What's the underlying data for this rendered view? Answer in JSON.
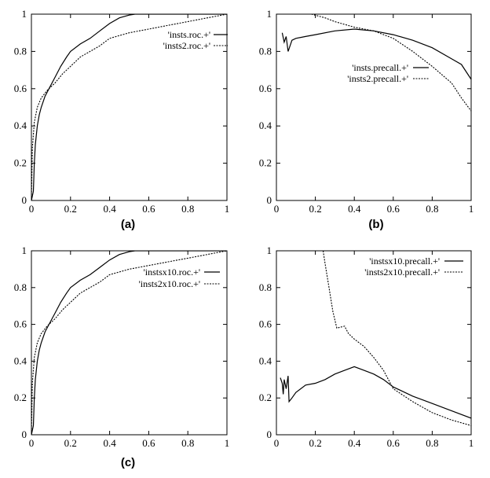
{
  "figure": {
    "captions": [
      "(a)",
      "(b)",
      "(c)"
    ]
  },
  "chart_data": [
    {
      "type": "line",
      "title": "",
      "caption": "(a)",
      "xlim": [
        0,
        1
      ],
      "ylim": [
        0,
        1
      ],
      "xticks": [
        "0",
        "0.2",
        "0.4",
        "0.6",
        "0.8",
        "1"
      ],
      "yticks": [
        "0",
        "0.2",
        "0.4",
        "0.6",
        "0.8",
        "1"
      ],
      "legend_position": "top-right",
      "series": [
        {
          "name": "'insts.roc.+'",
          "style": "solid",
          "points": [
            [
              0,
              0
            ],
            [
              0.01,
              0.05
            ],
            [
              0.015,
              0.2
            ],
            [
              0.02,
              0.3
            ],
            [
              0.03,
              0.4
            ],
            [
              0.04,
              0.46
            ],
            [
              0.05,
              0.5
            ],
            [
              0.07,
              0.56
            ],
            [
              0.09,
              0.6
            ],
            [
              0.12,
              0.66
            ],
            [
              0.15,
              0.72
            ],
            [
              0.18,
              0.77
            ],
            [
              0.2,
              0.8
            ],
            [
              0.25,
              0.84
            ],
            [
              0.3,
              0.87
            ],
            [
              0.35,
              0.91
            ],
            [
              0.4,
              0.95
            ],
            [
              0.45,
              0.98
            ],
            [
              0.5,
              0.995
            ],
            [
              0.53,
              1
            ],
            [
              1,
              1
            ]
          ]
        },
        {
          "name": "'insts2.roc.+'",
          "style": "dashed",
          "points": [
            [
              0,
              0
            ],
            [
              0.005,
              0.28
            ],
            [
              0.015,
              0.42
            ],
            [
              0.03,
              0.5
            ],
            [
              0.05,
              0.55
            ],
            [
              0.08,
              0.59
            ],
            [
              0.12,
              0.63
            ],
            [
              0.16,
              0.68
            ],
            [
              0.2,
              0.72
            ],
            [
              0.25,
              0.77
            ],
            [
              0.3,
              0.8
            ],
            [
              0.35,
              0.83
            ],
            [
              0.4,
              0.87
            ],
            [
              0.5,
              0.9
            ],
            [
              0.6,
              0.92
            ],
            [
              0.7,
              0.94
            ],
            [
              0.8,
              0.96
            ],
            [
              0.9,
              0.98
            ],
            [
              0.95,
              0.99
            ],
            [
              1,
              1
            ]
          ]
        }
      ]
    },
    {
      "type": "line",
      "title": "",
      "caption": "(b)",
      "xlim": [
        0,
        1
      ],
      "ylim": [
        0,
        1
      ],
      "xticks": [
        "0",
        "0.2",
        "0.4",
        "0.6",
        "0.8",
        "1"
      ],
      "yticks": [
        "0",
        "0.2",
        "0.4",
        "0.6",
        "0.8",
        "1"
      ],
      "legend_position": "center-right",
      "series": [
        {
          "name": "'insts.precall.+'",
          "style": "solid",
          "points": [
            [
              0.03,
              0.9
            ],
            [
              0.04,
              0.85
            ],
            [
              0.05,
              0.88
            ],
            [
              0.06,
              0.8
            ],
            [
              0.08,
              0.86
            ],
            [
              0.1,
              0.87
            ],
            [
              0.15,
              0.88
            ],
            [
              0.2,
              0.89
            ],
            [
              0.3,
              0.91
            ],
            [
              0.4,
              0.92
            ],
            [
              0.5,
              0.91
            ],
            [
              0.6,
              0.89
            ],
            [
              0.7,
              0.86
            ],
            [
              0.8,
              0.82
            ],
            [
              0.9,
              0.76
            ],
            [
              0.95,
              0.73
            ],
            [
              1,
              0.65
            ]
          ]
        },
        {
          "name": "'insts2.precall.+'",
          "style": "dashed",
          "points": [
            [
              0.18,
              1
            ],
            [
              0.25,
              0.98
            ],
            [
              0.3,
              0.96
            ],
            [
              0.4,
              0.93
            ],
            [
              0.5,
              0.91
            ],
            [
              0.6,
              0.87
            ],
            [
              0.7,
              0.8
            ],
            [
              0.8,
              0.72
            ],
            [
              0.9,
              0.63
            ],
            [
              0.95,
              0.55
            ],
            [
              1,
              0.48
            ]
          ]
        }
      ]
    },
    {
      "type": "line",
      "title": "",
      "caption": "(c)",
      "xlim": [
        0,
        1
      ],
      "ylim": [
        0,
        1
      ],
      "xticks": [
        "0",
        "0.2",
        "0.4",
        "0.6",
        "0.8",
        "1"
      ],
      "yticks": [
        "0",
        "0.2",
        "0.4",
        "0.6",
        "0.8",
        "1"
      ],
      "legend_position": "top-right",
      "series": [
        {
          "name": "'instsx10.roc.+'",
          "style": "solid",
          "points": [
            [
              0,
              0
            ],
            [
              0.01,
              0.05
            ],
            [
              0.015,
              0.2
            ],
            [
              0.02,
              0.3
            ],
            [
              0.03,
              0.4
            ],
            [
              0.04,
              0.46
            ],
            [
              0.05,
              0.5
            ],
            [
              0.07,
              0.56
            ],
            [
              0.09,
              0.6
            ],
            [
              0.12,
              0.66
            ],
            [
              0.15,
              0.72
            ],
            [
              0.18,
              0.77
            ],
            [
              0.2,
              0.8
            ],
            [
              0.25,
              0.84
            ],
            [
              0.3,
              0.87
            ],
            [
              0.35,
              0.91
            ],
            [
              0.4,
              0.95
            ],
            [
              0.45,
              0.98
            ],
            [
              0.5,
              0.995
            ],
            [
              0.53,
              1
            ],
            [
              1,
              1
            ]
          ]
        },
        {
          "name": "'insts2x10.roc.+'",
          "style": "dashed",
          "points": [
            [
              0,
              0
            ],
            [
              0.005,
              0.28
            ],
            [
              0.015,
              0.42
            ],
            [
              0.03,
              0.5
            ],
            [
              0.05,
              0.55
            ],
            [
              0.08,
              0.59
            ],
            [
              0.12,
              0.63
            ],
            [
              0.16,
              0.68
            ],
            [
              0.2,
              0.72
            ],
            [
              0.25,
              0.77
            ],
            [
              0.3,
              0.8
            ],
            [
              0.35,
              0.83
            ],
            [
              0.4,
              0.87
            ],
            [
              0.5,
              0.9
            ],
            [
              0.6,
              0.92
            ],
            [
              0.7,
              0.94
            ],
            [
              0.8,
              0.96
            ],
            [
              0.9,
              0.98
            ],
            [
              0.95,
              0.99
            ],
            [
              1,
              1
            ]
          ]
        }
      ]
    },
    {
      "type": "line",
      "title": "",
      "caption": "",
      "xlim": [
        0,
        1
      ],
      "ylim": [
        0,
        1
      ],
      "xticks": [
        "0",
        "0.2",
        "0.4",
        "0.6",
        "0.8",
        "1"
      ],
      "yticks": [
        "0",
        "0.2",
        "0.4",
        "0.6",
        "0.8",
        "1"
      ],
      "legend_position": "top-right",
      "series": [
        {
          "name": "'instsx10.precall.+'",
          "style": "solid",
          "points": [
            [
              0.02,
              0.31
            ],
            [
              0.03,
              0.28
            ],
            [
              0.035,
              0.22
            ],
            [
              0.04,
              0.3
            ],
            [
              0.05,
              0.25
            ],
            [
              0.06,
              0.32
            ],
            [
              0.065,
              0.18
            ],
            [
              0.08,
              0.2
            ],
            [
              0.1,
              0.23
            ],
            [
              0.15,
              0.27
            ],
            [
              0.2,
              0.28
            ],
            [
              0.25,
              0.3
            ],
            [
              0.3,
              0.33
            ],
            [
              0.35,
              0.35
            ],
            [
              0.4,
              0.37
            ],
            [
              0.45,
              0.35
            ],
            [
              0.5,
              0.33
            ],
            [
              0.55,
              0.3
            ],
            [
              0.6,
              0.26
            ],
            [
              0.7,
              0.21
            ],
            [
              0.8,
              0.17
            ],
            [
              0.9,
              0.13
            ],
            [
              1,
              0.09
            ]
          ]
        },
        {
          "name": "'insts2x10.precall.+'",
          "style": "dashed",
          "points": [
            [
              0.24,
              1
            ],
            [
              0.25,
              0.93
            ],
            [
              0.27,
              0.8
            ],
            [
              0.29,
              0.67
            ],
            [
              0.31,
              0.58
            ],
            [
              0.35,
              0.59
            ],
            [
              0.37,
              0.55
            ],
            [
              0.4,
              0.52
            ],
            [
              0.45,
              0.48
            ],
            [
              0.5,
              0.42
            ],
            [
              0.55,
              0.35
            ],
            [
              0.6,
              0.25
            ],
            [
              0.7,
              0.18
            ],
            [
              0.8,
              0.12
            ],
            [
              0.9,
              0.08
            ],
            [
              1,
              0.05
            ]
          ]
        }
      ]
    }
  ]
}
